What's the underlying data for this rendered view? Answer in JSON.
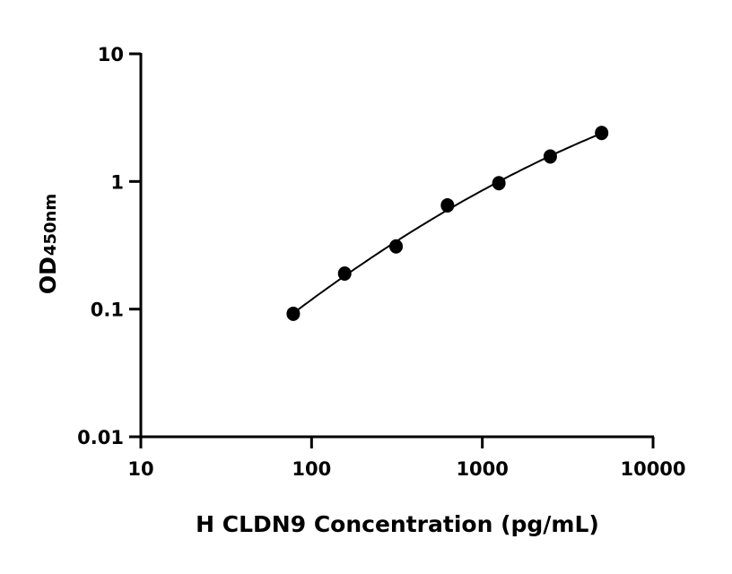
{
  "chart_data": {
    "type": "scatter",
    "title": "",
    "xlabel": "H CLDN9 Concentration (pg/mL)",
    "ylabel": "OD",
    "ylabel_subscript": "450nm",
    "x_scale": "log",
    "y_scale": "log",
    "xlim": [
      10,
      10000
    ],
    "ylim": [
      0.01,
      10
    ],
    "x_ticks": [
      "10",
      "100",
      "1000",
      "10000"
    ],
    "x_tick_values": [
      10,
      100,
      1000,
      10000
    ],
    "y_ticks": [
      "0.01",
      "0.1",
      "1",
      "10"
    ],
    "y_tick_values": [
      0.01,
      0.1,
      1,
      10
    ],
    "grid": false,
    "series": [
      {
        "x": [
          78.125,
          156.25,
          312.5,
          625,
          1250,
          2500,
          5000
        ],
        "y": [
          0.092,
          0.19,
          0.31,
          0.65,
          0.97,
          1.57,
          2.4
        ],
        "marker": "filled-circle",
        "fit_curve": true,
        "color": "#000000"
      }
    ]
  }
}
